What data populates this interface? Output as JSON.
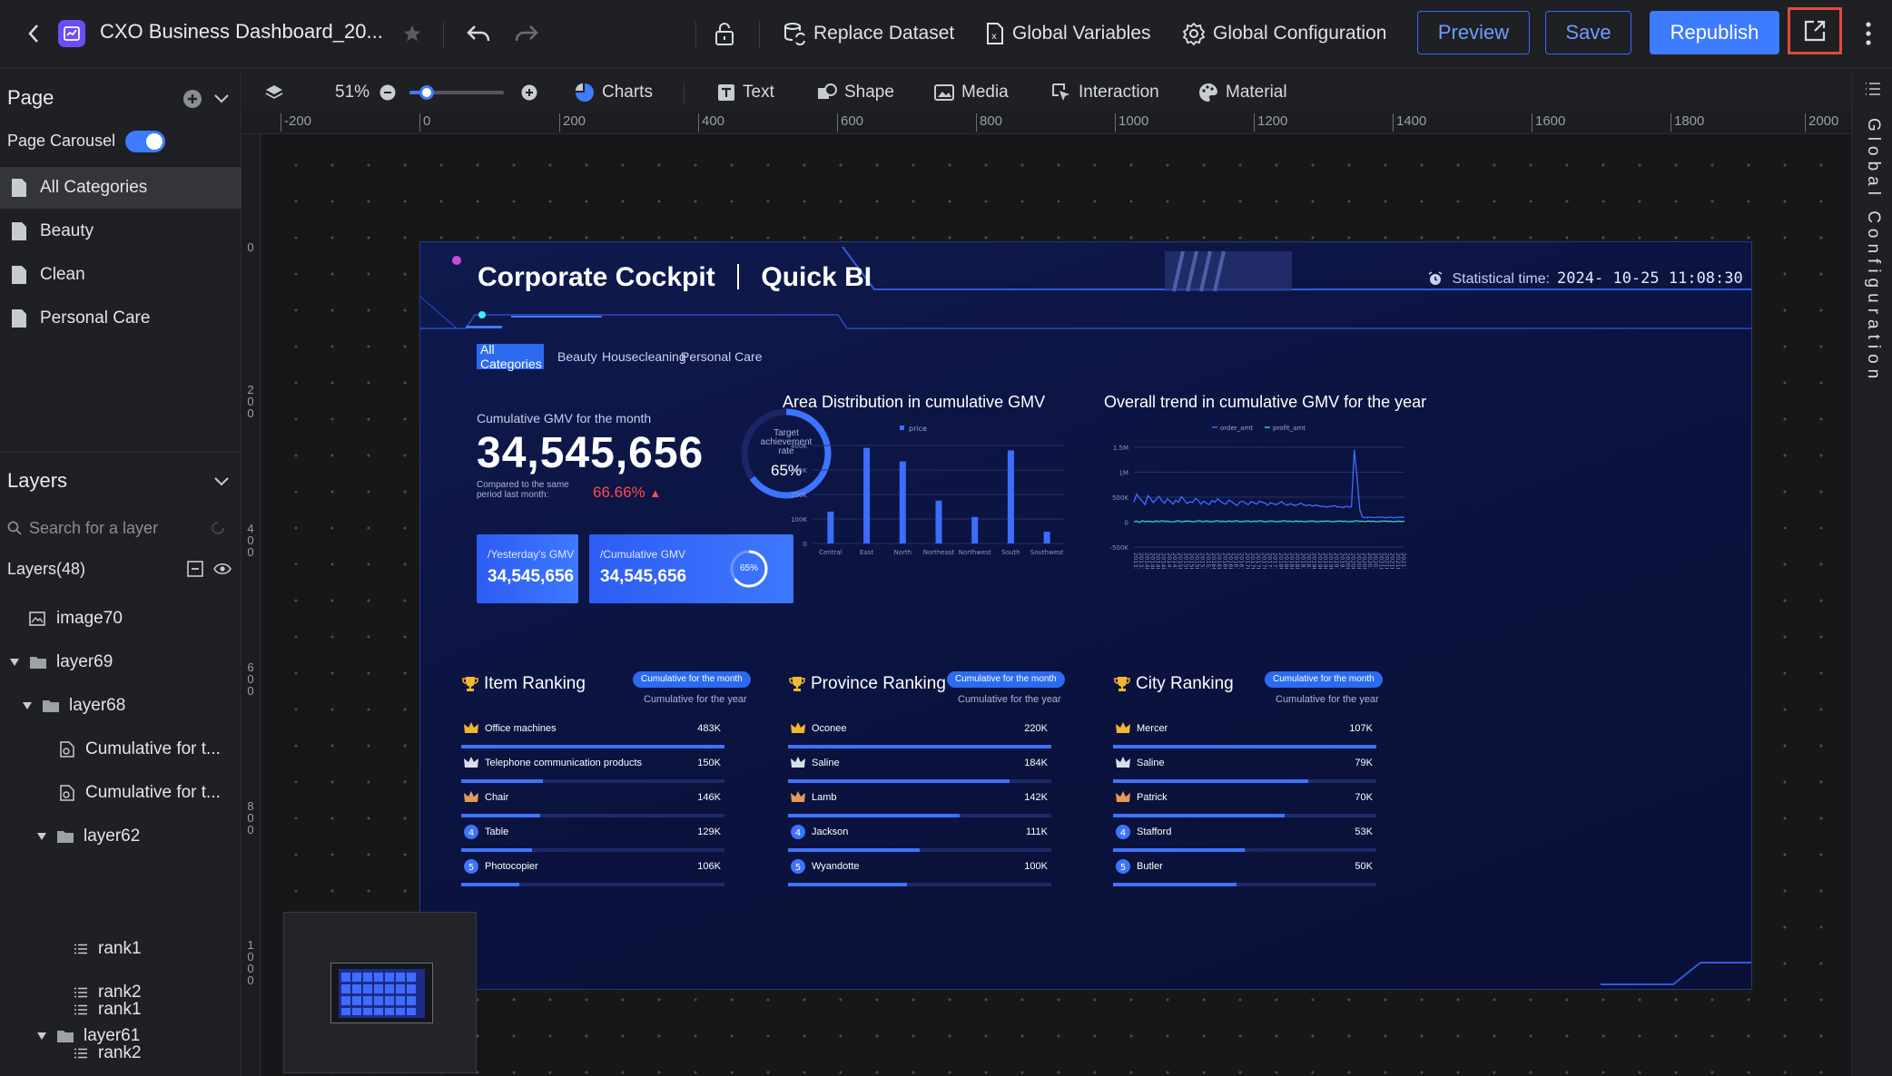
{
  "topbar": {
    "title": "CXO Business Dashboard_20...",
    "replace_dataset": "Replace Dataset",
    "global_variables": "Global Variables",
    "global_configuration": "Global Configuration",
    "preview": "Preview",
    "save": "Save",
    "republish": "Republish"
  },
  "page_panel": {
    "title": "Page",
    "carousel_label": "Page Carousel",
    "carousel_on": true,
    "pages": [
      "All Categories",
      "Beauty",
      "Clean",
      "Personal Care"
    ],
    "active_page": "All Categories"
  },
  "layers_panel": {
    "title": "Layers",
    "search_placeholder": "Search for a layer",
    "count_label": "Layers(48)",
    "items": [
      {
        "label": "image70",
        "kind": "image"
      },
      {
        "label": "layer69",
        "kind": "folder",
        "expanded": true
      },
      {
        "label": "layer68",
        "kind": "folder",
        "expanded": true
      },
      {
        "label": "Cumulative for t...",
        "kind": "component"
      },
      {
        "label": "Cumulative for t...",
        "kind": "component"
      },
      {
        "label": "layer62",
        "kind": "folder",
        "expanded": true
      },
      {
        "label": "rank1",
        "kind": "list"
      },
      {
        "label": "rank2",
        "kind": "list"
      },
      {
        "label": "layer61",
        "kind": "folder",
        "expanded": true
      },
      {
        "label": "rank1",
        "kind": "list"
      },
      {
        "label": "rank2",
        "kind": "list"
      }
    ]
  },
  "toolbar": {
    "zoom": "51%",
    "zoom_level": 0.51,
    "charts": "Charts",
    "text": "Text",
    "shape": "Shape",
    "media": "Media",
    "interaction": "Interaction",
    "material": "Material"
  },
  "ruler": {
    "h_marks": [
      "-200",
      "0",
      "200",
      "400",
      "600",
      "800",
      "1000",
      "1200",
      "1400",
      "1600",
      "1800",
      "2000"
    ],
    "v_marks": [
      "0",
      "200",
      "400",
      "600",
      "800",
      "1000"
    ]
  },
  "right_panel_label": "Global Configuration",
  "dashboard": {
    "title_left": "Corporate Cockpit",
    "title_right": "Quick BI",
    "time_label": "Statistical time:",
    "time_value": "2024- 10-25  11:08:30",
    "tabs": [
      "All Categories",
      "Beauty",
      "Housecleaning",
      "Personal Care"
    ],
    "active_tab": "All Categories",
    "kpi": {
      "label": "Cumulative GMV for the month",
      "value": "34,545,656",
      "compare_label": "Compared to the same period last month:",
      "compare_value": "66.66%",
      "gauge_label": "Target achievement rate",
      "gauge_value": "65%",
      "gauge_fraction": 0.65
    },
    "cards": [
      {
        "label": "/Yesterday's GMV",
        "value": "34,545,656"
      },
      {
        "label": "/Cumulative GMV",
        "value": "34,545,656",
        "ring": "65%",
        "ring_fraction": 0.65
      }
    ],
    "area_title": "Area Distribution in cumulative GMV",
    "trend_title": "Overall trend in cumulative GMV for the year",
    "rankings": [
      {
        "title": "Item Ranking",
        "pill": "Cumulative for the month",
        "alt": "Cumulative for the year",
        "items": [
          {
            "rank": 1,
            "name": "Office machines",
            "value": "483K",
            "fraction": 1.0
          },
          {
            "rank": 2,
            "name": "Telephone communication products",
            "value": "150K",
            "fraction": 0.31
          },
          {
            "rank": 3,
            "name": "Chair",
            "value": "146K",
            "fraction": 0.3
          },
          {
            "rank": 4,
            "name": "Table",
            "value": "129K",
            "fraction": 0.27
          },
          {
            "rank": 5,
            "name": "Photocopier",
            "value": "106K",
            "fraction": 0.22
          }
        ]
      },
      {
        "title": "Province Ranking",
        "pill": "Cumulative for the month",
        "alt": "Cumulative for the year",
        "items": [
          {
            "rank": 1,
            "name": "Oconee",
            "value": "220K",
            "fraction": 1.0
          },
          {
            "rank": 2,
            "name": "Saline",
            "value": "184K",
            "fraction": 0.84
          },
          {
            "rank": 3,
            "name": "Lamb",
            "value": "142K",
            "fraction": 0.65
          },
          {
            "rank": 4,
            "name": "Jackson",
            "value": "111K",
            "fraction": 0.5
          },
          {
            "rank": 5,
            "name": "Wyandotte",
            "value": "100K",
            "fraction": 0.45
          }
        ]
      },
      {
        "title": "City Ranking",
        "pill": "Cumulative for the month",
        "alt": "Cumulative for the year",
        "items": [
          {
            "rank": 1,
            "name": "Mercer",
            "value": "107K",
            "fraction": 1.0
          },
          {
            "rank": 2,
            "name": "Saline",
            "value": "79K",
            "fraction": 0.74
          },
          {
            "rank": 3,
            "name": "Patrick",
            "value": "70K",
            "fraction": 0.65
          },
          {
            "rank": 4,
            "name": "Stafford",
            "value": "53K",
            "fraction": 0.5
          },
          {
            "rank": 5,
            "name": "Butler",
            "value": "50K",
            "fraction": 0.47
          }
        ]
      }
    ]
  },
  "chart_data": [
    {
      "type": "bar",
      "title": "Area Distribution in cumulative GMV",
      "categories": [
        "Central",
        "East",
        "North",
        "Northeast",
        "Northwest",
        "South",
        "Southwest"
      ],
      "series": [
        {
          "name": "price",
          "values": [
            130000,
            390000,
            335000,
            175000,
            108000,
            380000,
            48000
          ]
        }
      ],
      "ylim": [
        0,
        400000
      ],
      "yticks": [
        "0",
        "100K",
        "200K",
        "300K",
        "400K"
      ],
      "legend": "top-center",
      "grid": true,
      "color": "#3d6cff"
    },
    {
      "type": "line",
      "title": "Overall trend in cumulative GMV for the year",
      "x": [
        "201310",
        "201311",
        "201312",
        "201401",
        "201402",
        "201403",
        "201404",
        "201405",
        "201406",
        "201407",
        "201408",
        "201409",
        "201410",
        "201411",
        "201412",
        "201501",
        "201502",
        "201503",
        "201504",
        "201505",
        "201506",
        "201507",
        "201508",
        "201509",
        "201510",
        "201511",
        "201512",
        "201601",
        "201602",
        "201603",
        "201604",
        "201605",
        "201606",
        "201607",
        "201608",
        "201609",
        "201610",
        "201611",
        "201612",
        "201701",
        "201702",
        "201703",
        "201704",
        "201705",
        "201706",
        "201707",
        "201708",
        "201709",
        "201710",
        "201711",
        "201712",
        "201801",
        "201802",
        "201803",
        "201804",
        "201805",
        "201806",
        "201807",
        "201808",
        "201809",
        "201810",
        "201811",
        "201812",
        "201901",
        "201902",
        "201903",
        "201904",
        "201905",
        "201906",
        "201907",
        "201908",
        "201909",
        "201910",
        "201911",
        "201912",
        "202001",
        "202002",
        "202003",
        "202004",
        "202005",
        "202006",
        "202007",
        "202008",
        "202009",
        "202010",
        "202011",
        "202012",
        "202101",
        "202102",
        "202103",
        "202104",
        "202105",
        "202106",
        "202107",
        "202108",
        "202109",
        "202110",
        "202111"
      ],
      "xticks": [
        "201310",
        "201312",
        "201402",
        "201404",
        "201406",
        "201408",
        "201410",
        "201412",
        "201502",
        "201504",
        "201506",
        "201508",
        "201510",
        "201512",
        "201602",
        "201604",
        "201606",
        "201608",
        "201610",
        "201612",
        "201702",
        "201704",
        "201706",
        "201708",
        "201710",
        "201712",
        "201802",
        "201804",
        "201806",
        "201808",
        "201810",
        "201812",
        "201902",
        "201904",
        "201906",
        "201908",
        "201910",
        "201912",
        "202002",
        "202004",
        "202006",
        "202008",
        "202010",
        "202012",
        "202102",
        "202104",
        "202106",
        "202108",
        "202110"
      ],
      "series": [
        {
          "name": "order_amt",
          "values": [
            400000,
            560000,
            480000,
            420000,
            350000,
            530000,
            470000,
            390000,
            460000,
            520000,
            430000,
            380000,
            470000,
            420000,
            360000,
            440000,
            400000,
            510000,
            450000,
            370000,
            410000,
            390000,
            470000,
            440000,
            360000,
            420000,
            380000,
            350000,
            430000,
            400000,
            470000,
            420000,
            380000,
            360000,
            440000,
            410000,
            370000,
            330000,
            400000,
            420000,
            380000,
            350000,
            410000,
            390000,
            360000,
            420000,
            400000,
            380000,
            340000,
            390000,
            370000,
            350000,
            380000,
            410000,
            360000,
            340000,
            370000,
            350000,
            330000,
            360000,
            380000,
            340000,
            330000,
            350000,
            320000,
            340000,
            330000,
            310000,
            320000,
            300000,
            310000,
            320000,
            330000,
            300000,
            310000,
            290000,
            320000,
            300000,
            310000,
            1450000,
            900000,
            250000,
            100000,
            90000,
            95000,
            100000,
            90000,
            100000,
            95000,
            100000,
            90000,
            95000,
            100000,
            90000,
            95000,
            100000,
            95000,
            100000
          ]
        },
        {
          "name": "profit_amt",
          "values": [
            10000,
            20000,
            -10000,
            30000,
            10000,
            20000,
            15000,
            5000,
            25000,
            10000,
            30000,
            15000,
            20000,
            10000,
            5000,
            20000,
            30000,
            10000,
            15000,
            25000,
            20000,
            10000,
            15000,
            30000,
            20000,
            10000,
            25000,
            15000,
            10000,
            20000,
            30000,
            15000,
            20000,
            10000,
            25000,
            15000,
            20000,
            30000,
            10000,
            15000,
            20000,
            25000,
            10000,
            20000,
            15000,
            30000,
            20000,
            10000,
            15000,
            25000,
            20000,
            10000,
            15000,
            20000,
            30000,
            15000,
            20000,
            10000,
            25000,
            15000,
            20000,
            10000,
            15000,
            20000,
            25000,
            15000,
            10000,
            20000,
            15000,
            25000,
            20000,
            10000,
            15000,
            20000,
            25000,
            15000,
            20000,
            10000,
            15000,
            20000,
            30000,
            15000,
            20000,
            10000,
            25000,
            15000,
            20000,
            10000,
            15000,
            20000,
            25000,
            15000,
            20000,
            10000,
            15000,
            20000,
            15000,
            20000
          ]
        }
      ],
      "ylim": [
        -500000,
        1500000
      ],
      "yticks": [
        "-500K",
        "0",
        "500K",
        "1M",
        "1.5M"
      ],
      "legend": "top-center",
      "colors": [
        "#3d6cff",
        "#2ec7c9"
      ]
    }
  ]
}
